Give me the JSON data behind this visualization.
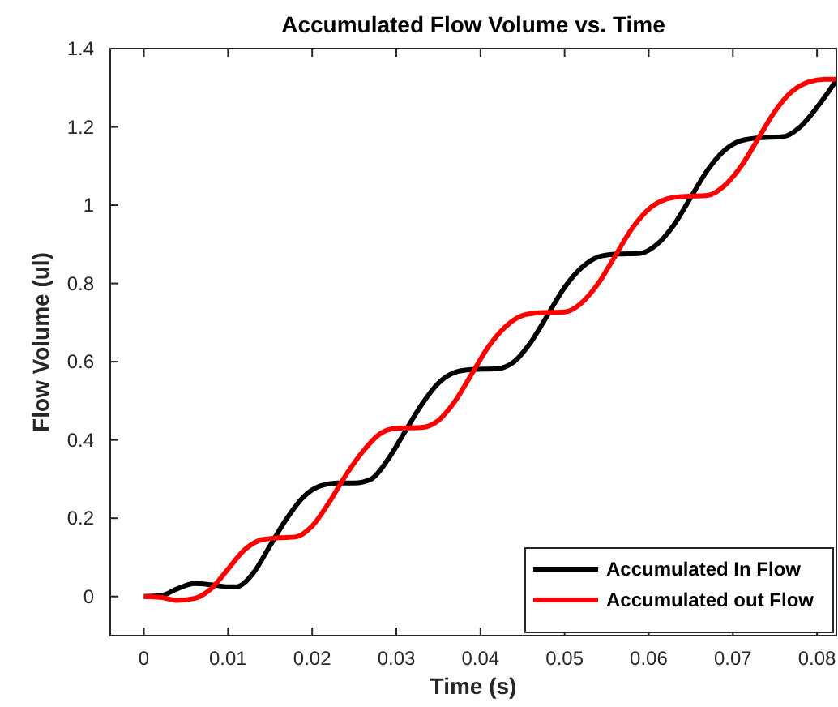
{
  "chart_data": {
    "type": "line",
    "title": "Accumulated Flow Volume vs. Time",
    "xlabel": "Time (s)",
    "ylabel": "Flow Volume (ul)",
    "xlim": [
      -0.004,
      0.0823
    ],
    "xticks": [
      0,
      0.01,
      0.02,
      0.03,
      0.04,
      0.05,
      0.06,
      0.07,
      0.08
    ],
    "ylim": [
      -0.1,
      1.4
    ],
    "yticks": [
      0,
      0.2,
      0.4,
      0.6,
      0.8,
      1,
      1.2,
      1.4
    ],
    "grid": false,
    "legend": "bottom right",
    "line_style": "solid",
    "series": [
      {
        "name": "Accumulated In Flow",
        "color": "#000000",
        "x": [
          0,
          0.002,
          0.004,
          0.006,
          0.008,
          0.01,
          0.011,
          0.013,
          0.015,
          0.017,
          0.019,
          0.021,
          0.023,
          0.025,
          0.027,
          0.029,
          0.031,
          0.033,
          0.035,
          0.037,
          0.039,
          0.042,
          0.044,
          0.046,
          0.048,
          0.05,
          0.052,
          0.054,
          0.056,
          0.059,
          0.061,
          0.063,
          0.065,
          0.067,
          0.069,
          0.071,
          0.073,
          0.076,
          0.078,
          0.08,
          0.082,
          0.0823
        ],
        "values": [
          0,
          0.002,
          0.02,
          0.033,
          0.03,
          0.025,
          0.025,
          0.06,
          0.13,
          0.2,
          0.255,
          0.283,
          0.29,
          0.29,
          0.3,
          0.35,
          0.42,
          0.49,
          0.545,
          0.573,
          0.58,
          0.582,
          0.6,
          0.65,
          0.72,
          0.79,
          0.84,
          0.868,
          0.875,
          0.877,
          0.9,
          0.95,
          1.02,
          1.09,
          1.14,
          1.165,
          1.172,
          1.175,
          1.2,
          1.25,
          1.31,
          1.32
        ]
      },
      {
        "name": "Accumulated out Flow",
        "color": "#ff0000",
        "x": [
          0,
          0.002,
          0.004,
          0.006,
          0.008,
          0.01,
          0.012,
          0.014,
          0.016,
          0.018,
          0.02,
          0.022,
          0.024,
          0.026,
          0.028,
          0.03,
          0.033,
          0.035,
          0.037,
          0.039,
          0.041,
          0.043,
          0.045,
          0.047,
          0.05,
          0.052,
          0.054,
          0.056,
          0.058,
          0.06,
          0.062,
          0.064,
          0.067,
          0.069,
          0.071,
          0.073,
          0.075,
          0.077,
          0.079,
          0.081,
          0.0823
        ],
        "values": [
          0,
          -0.002,
          -0.01,
          -0.005,
          0.02,
          0.07,
          0.12,
          0.145,
          0.15,
          0.152,
          0.18,
          0.24,
          0.31,
          0.37,
          0.415,
          0.43,
          0.432,
          0.45,
          0.5,
          0.57,
          0.64,
          0.69,
          0.718,
          0.725,
          0.727,
          0.75,
          0.8,
          0.87,
          0.94,
          0.99,
          1.015,
          1.022,
          1.025,
          1.05,
          1.1,
          1.17,
          1.24,
          1.29,
          1.315,
          1.322,
          1.322
        ]
      }
    ]
  }
}
